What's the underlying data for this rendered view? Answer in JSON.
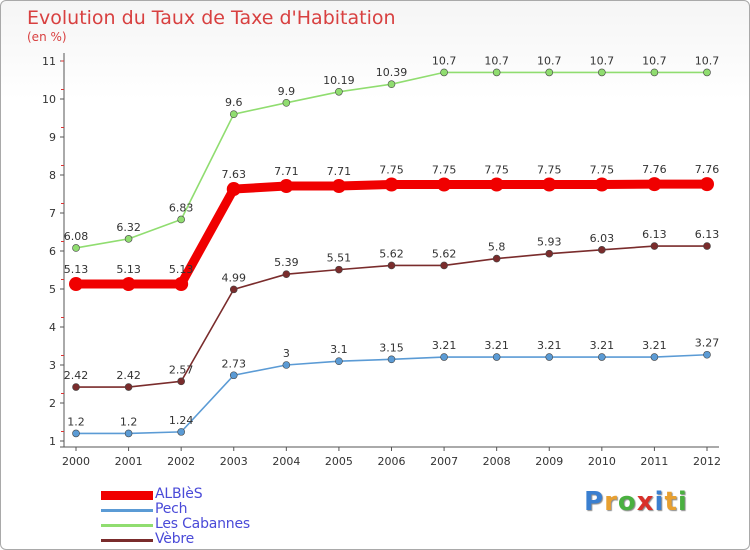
{
  "title": "Evolution du Taux de Taxe d'Habitation",
  "subtitle": "(en %)",
  "logo": [
    "P",
    "r",
    "o",
    "x",
    "i",
    "t",
    "i"
  ],
  "logo_colors": [
    "#3a7fd0",
    "#e8a030",
    "#4ab040",
    "#d8302a",
    "#3a7fd0",
    "#e8a030",
    "#4ab040"
  ],
  "chart_data": {
    "type": "line",
    "x": [
      2000,
      2001,
      2002,
      2003,
      2004,
      2005,
      2006,
      2007,
      2008,
      2009,
      2010,
      2011,
      2012
    ],
    "ylim": [
      1,
      11
    ],
    "yticks": [
      1,
      2,
      3,
      4,
      5,
      6,
      7,
      8,
      9,
      10,
      11
    ],
    "grid": false,
    "legend_position": "bottom-left",
    "series": [
      {
        "name": "ALBIèS",
        "color": "#f00000",
        "values": [
          5.13,
          5.13,
          5.13,
          7.63,
          7.71,
          7.71,
          7.75,
          7.75,
          7.75,
          7.75,
          7.75,
          7.76,
          7.76
        ],
        "labels": [
          "5.13",
          "5.13",
          "5.13",
          "7.63",
          "7.71",
          "7.71",
          "7.75",
          "7.75",
          "7.75",
          "7.75",
          "7.75",
          "7.76",
          "7.76"
        ]
      },
      {
        "name": "Pech",
        "color": "#5b9bd5",
        "values": [
          1.2,
          1.2,
          1.24,
          2.73,
          3,
          3.1,
          3.15,
          3.21,
          3.21,
          3.21,
          3.21,
          3.21,
          3.27
        ],
        "labels": [
          "1.2",
          "1.2",
          "1.24",
          "2.73",
          "3",
          "3.1",
          "3.15",
          "3.21",
          "3.21",
          "3.21",
          "3.21",
          "3.21",
          "3.27"
        ]
      },
      {
        "name": "Les Cabannes",
        "color": "#90dd70",
        "values": [
          6.08,
          6.32,
          6.83,
          9.6,
          9.9,
          10.19,
          10.39,
          10.7,
          10.7,
          10.7,
          10.7,
          10.7,
          10.7
        ],
        "labels": [
          "6.08",
          "6.32",
          "6.83",
          "9.6",
          "9.9",
          "10.19",
          "10.39",
          "10.7",
          "10.7",
          "10.7",
          "10.7",
          "10.7",
          "10.7"
        ]
      },
      {
        "name": "Vèbre",
        "color": "#7a2c2c",
        "values": [
          2.42,
          2.42,
          2.57,
          4.99,
          5.39,
          5.51,
          5.62,
          5.62,
          5.8,
          5.93,
          6.03,
          6.13,
          6.13
        ],
        "labels": [
          "2.42",
          "2.42",
          "2.57",
          "4.99",
          "5.39",
          "5.51",
          "5.62",
          "5.62",
          "5.8",
          "5.93",
          "6.03",
          "6.13",
          "6.13"
        ]
      }
    ]
  }
}
